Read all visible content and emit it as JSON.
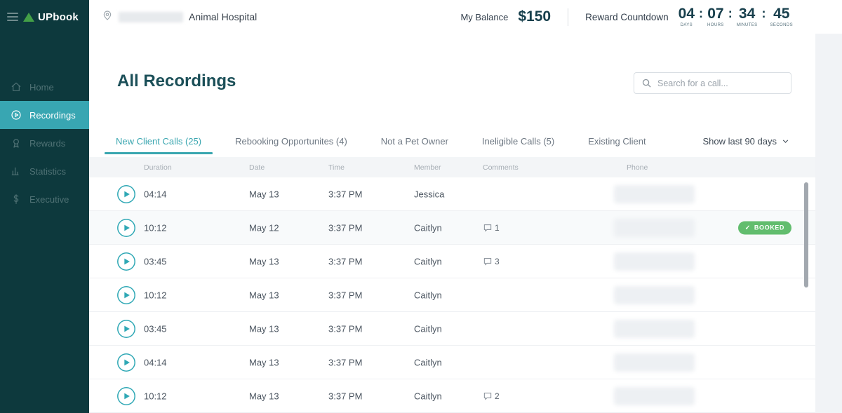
{
  "sidebar": {
    "logo_text": "UPbook",
    "items": [
      {
        "label": "Home",
        "icon": "home",
        "active": false
      },
      {
        "label": "Recordings",
        "icon": "play-circle",
        "active": true
      },
      {
        "label": "Rewards",
        "icon": "award",
        "active": false
      },
      {
        "label": "Statistics",
        "icon": "bar-chart",
        "active": false
      },
      {
        "label": "Executive",
        "icon": "dollar",
        "active": false
      }
    ]
  },
  "header": {
    "location_name": "Animal Hospital",
    "balance_label": "My Balance",
    "balance_value": "$150",
    "countdown_label": "Reward Countdown",
    "countdown_segments": [
      {
        "value": "04",
        "unit": "DAYS"
      },
      {
        "value": "07",
        "unit": "HOURS"
      },
      {
        "value": "34",
        "unit": "MINUTES"
      },
      {
        "value": "45",
        "unit": "SECONDS"
      }
    ]
  },
  "main": {
    "title": "All Recordings",
    "search_placeholder": "Search for a call...",
    "tabs": [
      {
        "label": "New Client Calls (25)",
        "active": true
      },
      {
        "label": "Rebooking Opportunites (4)",
        "active": false
      },
      {
        "label": "Not a Pet Owner",
        "active": false
      },
      {
        "label": "Ineligible Calls (5)",
        "active": false
      },
      {
        "label": "Existing Client",
        "active": false
      }
    ],
    "filter_label": "Show last 90 days",
    "table": {
      "columns": [
        "Duration",
        "Date",
        "Time",
        "Member",
        "Comments",
        "Phone"
      ],
      "booked_label": "BOOKED",
      "rows": [
        {
          "duration": "04:14",
          "date": "May 13",
          "time": "3:37 PM",
          "member": "Jessica",
          "comments": "",
          "booked": false
        },
        {
          "duration": "10:12",
          "date": "May 12",
          "time": "3:37 PM",
          "member": "Caitlyn",
          "comments": "1",
          "booked": true
        },
        {
          "duration": "03:45",
          "date": "May 13",
          "time": "3:37 PM",
          "member": "Caitlyn",
          "comments": "3",
          "booked": false
        },
        {
          "duration": "10:12",
          "date": "May 13",
          "time": "3:37 PM",
          "member": "Caitlyn",
          "comments": "",
          "booked": false
        },
        {
          "duration": "03:45",
          "date": "May 13",
          "time": "3:37 PM",
          "member": "Caitlyn",
          "comments": "",
          "booked": false
        },
        {
          "duration": "04:14",
          "date": "May 13",
          "time": "3:37 PM",
          "member": "Caitlyn",
          "comments": "",
          "booked": false
        },
        {
          "duration": "10:12",
          "date": "May 13",
          "time": "3:37 PM",
          "member": "Caitlyn",
          "comments": "2",
          "booked": false
        }
      ]
    }
  },
  "colors": {
    "sidebar_bg": "#0d393d",
    "accent_teal": "#38a6b2",
    "logo_green": "#43a047",
    "booked_green": "#62bd6e",
    "dark_teal_text": "#173f4c",
    "title_text": "#1b4f58"
  }
}
